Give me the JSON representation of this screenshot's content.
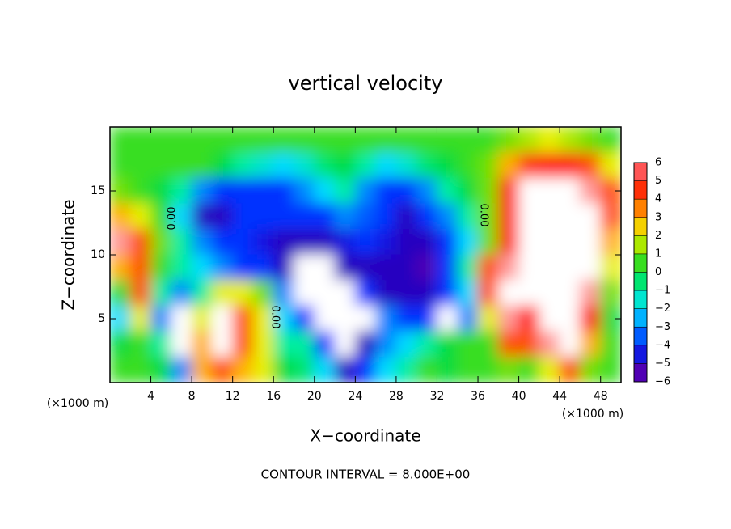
{
  "chart_data": {
    "type": "heatmap",
    "title": "vertical velocity",
    "x_label": "X−coordinate",
    "y_label": "Z−coordinate",
    "x_unit_label": "(×1000 m)",
    "footer": "CONTOUR INTERVAL = 8.000E+00",
    "contour_labels": [
      "0.00",
      "0.00",
      "0.00"
    ],
    "xlim": [
      0,
      50
    ],
    "ylim": [
      0,
      20
    ],
    "xticks": [
      4,
      8,
      12,
      16,
      20,
      24,
      28,
      32,
      36,
      40,
      44,
      48
    ],
    "yticks": [
      5,
      10,
      15
    ],
    "x": [
      1,
      3,
      5,
      7,
      9,
      11,
      13,
      15,
      17,
      19,
      21,
      23,
      25,
      27,
      29,
      31,
      33,
      35,
      37,
      39,
      41,
      43,
      45,
      47,
      49
    ],
    "y": [
      19,
      17,
      15,
      13,
      11,
      9,
      7,
      5,
      3,
      1
    ],
    "z": [
      [
        0.5,
        0.5,
        0.5,
        0.5,
        0.5,
        0.5,
        0.5,
        0.5,
        0.5,
        0.5,
        0.5,
        0.5,
        0.5,
        0.5,
        0.5,
        0.5,
        0.5,
        0.5,
        0.5,
        1,
        1.5,
        2,
        1.5,
        1,
        0.5
      ],
      [
        0.5,
        0.5,
        0.5,
        0.5,
        0.5,
        0,
        -1,
        -1.5,
        -2,
        -1.5,
        -0.5,
        0,
        -1,
        -2,
        -1.5,
        -0.5,
        0,
        0.5,
        1,
        3,
        4.5,
        5,
        5,
        4,
        2
      ],
      [
        1,
        0.5,
        0,
        -1,
        -3,
        -4,
        -4,
        -4,
        -4,
        -3,
        -2,
        -1,
        -3,
        -4,
        -4,
        -3,
        -1,
        0,
        1,
        5,
        7,
        7,
        7,
        6,
        4
      ],
      [
        3,
        2,
        0.5,
        -2,
        -5,
        -5,
        -4,
        -4,
        -4,
        -4,
        -4,
        -3,
        -3.5,
        -4,
        -5,
        -4,
        -3,
        -1,
        1,
        5,
        7,
        7,
        7,
        7,
        4
      ],
      [
        6,
        4,
        1,
        -1,
        -3,
        -4,
        -4,
        -4.5,
        -5,
        -5,
        -5,
        -4.5,
        -4,
        -4.5,
        -5,
        -5,
        -4,
        -2,
        1,
        5,
        7,
        7,
        7,
        7,
        3
      ],
      [
        3,
        4,
        0.5,
        -1,
        -2,
        -3,
        -4,
        -4,
        -5,
        7,
        7,
        -5,
        -5,
        -5,
        -5,
        -5.5,
        -4,
        -1,
        4,
        6,
        7,
        7,
        7,
        7,
        2
      ],
      [
        0,
        4,
        -1,
        -3,
        -1,
        2,
        2,
        1,
        -3,
        7,
        7,
        7,
        -4,
        -5,
        -5,
        -5,
        -4,
        -2,
        4,
        7,
        7,
        7,
        7,
        6,
        1
      ],
      [
        -2,
        2,
        -3,
        7,
        2,
        7,
        4,
        2,
        -2,
        -4,
        7,
        7,
        7,
        -3,
        -4,
        -4,
        7,
        -3,
        2,
        6,
        5,
        7,
        7,
        5,
        0
      ],
      [
        0,
        0.5,
        -1,
        7,
        3,
        7,
        4,
        2,
        -1,
        -1,
        -4,
        7,
        -5,
        -3,
        -2,
        -1,
        0,
        0.5,
        0.5,
        4,
        4,
        6,
        7,
        3,
        0.5
      ],
      [
        0.5,
        0.5,
        0,
        -3,
        3,
        4,
        3,
        2,
        0,
        -0.5,
        -2,
        -5,
        -4,
        -2,
        -1,
        0.5,
        0,
        0.5,
        0.5,
        1,
        0.5,
        2,
        4,
        1,
        0.5
      ]
    ],
    "colorbar": {
      "ticks": [
        6,
        5,
        4,
        3,
        2,
        1,
        0,
        {
          "value": -1,
          "label": "−1"
        },
        {
          "value": -2,
          "label": "−2"
        },
        {
          "value": -3,
          "label": "−3"
        },
        {
          "value": -4,
          "label": "−4"
        },
        {
          "value": -5,
          "label": "−5"
        },
        {
          "value": -6,
          "label": "−6"
        }
      ],
      "colors": [
        "#ff9a9a",
        "#ff1010",
        "#ff5000",
        "#ffb000",
        "#e8f000",
        "#70e000",
        "#00dc40",
        "#00eea0",
        "#00dcff",
        "#0088ff",
        "#0030ff",
        "#2800c0",
        "#7800a8"
      ],
      "over_color": "#ffffff"
    }
  }
}
